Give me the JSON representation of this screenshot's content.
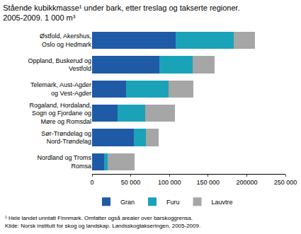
{
  "chart_data": {
    "type": "bar",
    "orientation": "horizontal",
    "stacked": true,
    "title": "Stående kubikkmasse¹ under bark, etter treslag og takserte regioner. 2005-2009. 1 000 m³",
    "categories": [
      "Østfold, Akershus, Oslo og Hedmark",
      "Oppland, Buskerud og Vestfold",
      "Telemark, Aust-Agder og Vest-Agder",
      "Rogaland, Hordaland, Sogn og Fjordane og Møre og Romsdal",
      "Sør-Trøndelag og Nord-Trøndelag",
      "Nordland og Troms Romsa"
    ],
    "series": [
      {
        "name": "Gran",
        "color": "#1f5aa6",
        "values": [
          108000,
          87000,
          44000,
          33000,
          54000,
          16000
        ]
      },
      {
        "name": "Furu",
        "color": "#1aa3b8",
        "values": [
          75000,
          43000,
          55000,
          36000,
          16000,
          4000
        ]
      },
      {
        "name": "Lauvtre",
        "color": "#a6a6a6",
        "values": [
          28000,
          28000,
          32000,
          38000,
          16000,
          35000
        ]
      }
    ],
    "xlim": [
      0,
      250000
    ],
    "xticks": [
      0,
      {
        "value": 50000,
        "label": "50 000"
      },
      {
        "value": 100000,
        "label": "100 000"
      },
      {
        "value": 150000,
        "label": "150 000"
      },
      200000,
      {
        "value": 250000,
        "label": "250 000"
      }
    ],
    "grid": false,
    "legend": "bottom",
    "annotations": [
      "¹ Hele landet unntatt Finnmark. Omfatter også arealer over barskoggrensa.",
      "Kilde: Norsk institutt for skog og landskap. Landsskogtakseringen, 2005-2009."
    ]
  }
}
